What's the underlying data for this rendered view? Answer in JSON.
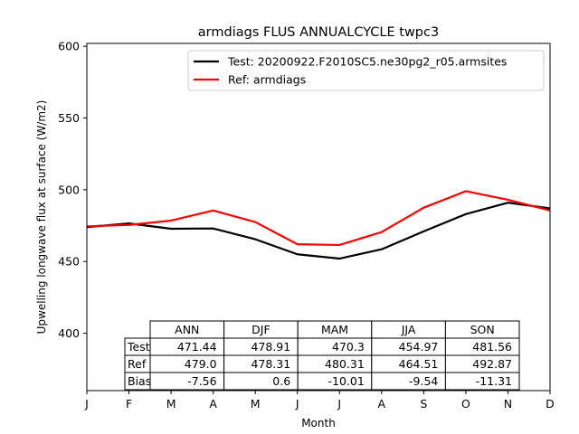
{
  "chart_data": {
    "type": "line",
    "title": "armdiags FLUS ANNUALCYCLE twpc3",
    "xlabel": "Month",
    "ylabel": "Upwelling longwave flux at surface (W/m2)",
    "categories": [
      "J",
      "F",
      "M",
      "A",
      "M",
      "J",
      "J",
      "A",
      "S",
      "O",
      "N",
      "D"
    ],
    "ylim": [
      360,
      602
    ],
    "yticks": [
      400,
      450,
      500,
      550,
      600
    ],
    "legend": "top-right",
    "grid": false,
    "series": [
      {
        "name": "Test: 20200922.F2010SC5.ne30pg2_r05.armsites",
        "color": "#000000",
        "values": [
          474,
          476.5,
          472.8,
          473,
          465.5,
          455,
          452,
          458.5,
          471,
          483,
          491,
          487
        ]
      },
      {
        "name": "Ref: armdiags",
        "color": "#ff0000",
        "values": [
          474.5,
          475.5,
          478.5,
          485.5,
          477.5,
          462,
          461.5,
          470.5,
          487.5,
          499,
          493,
          485.5
        ]
      }
    ],
    "table": {
      "columns": [
        "ANN",
        "DJF",
        "MAM",
        "JJA",
        "SON"
      ],
      "rows": [
        {
          "label": "Test",
          "values": [
            "471.44",
            "478.91",
            "470.3",
            "454.97",
            "481.56"
          ]
        },
        {
          "label": "Ref",
          "values": [
            "479.0",
            "478.31",
            "480.31",
            "464.51",
            "492.87"
          ]
        },
        {
          "label": "Bias",
          "values": [
            "-7.56",
            "0.6",
            "-10.01",
            "-9.54",
            "-11.31"
          ]
        }
      ]
    }
  }
}
